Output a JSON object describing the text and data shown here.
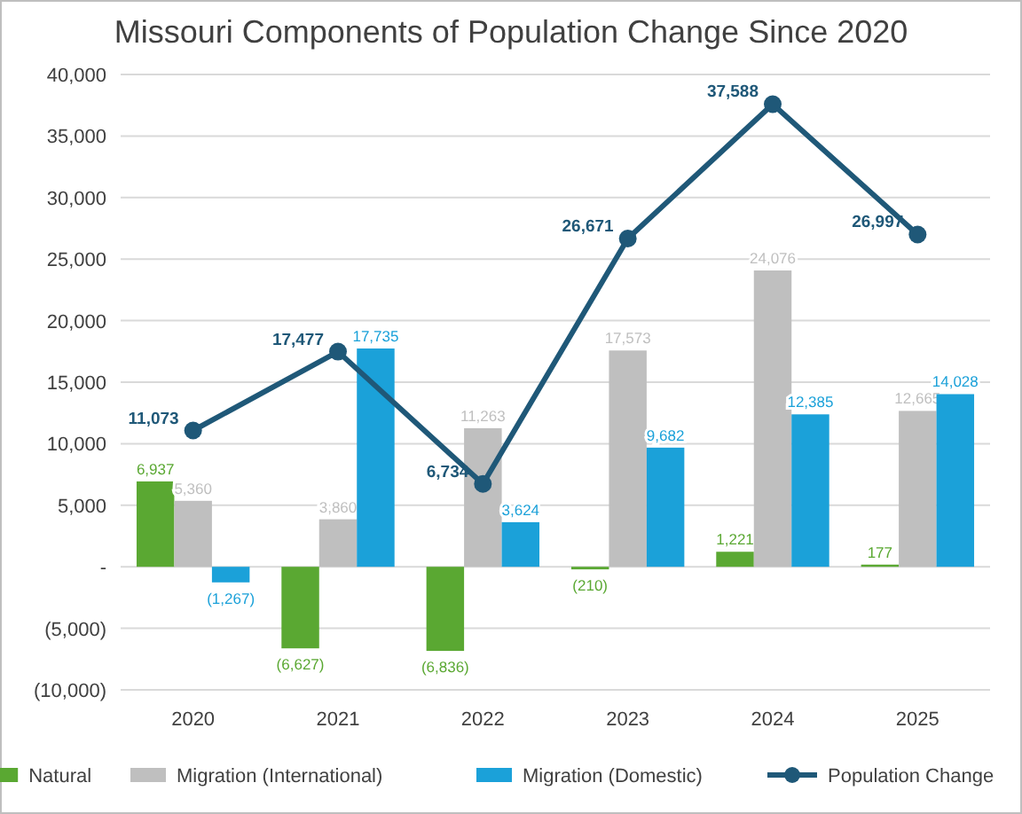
{
  "chart_data": {
    "type": "bar",
    "title": "Missouri Components of Population Change Since 2020",
    "categories": [
      "2020",
      "2021",
      "2022",
      "2023",
      "2024",
      "2025"
    ],
    "series": [
      {
        "name": "Natural",
        "color": "#5aa832",
        "values": [
          6937,
          -6627,
          -6836,
          -210,
          1221,
          177
        ],
        "value_labels": [
          "6,937",
          "(6,627)",
          "(6,836)",
          "(210)",
          "1,221",
          "177"
        ]
      },
      {
        "name": "Migration (International)",
        "color": "#bfbfbf",
        "values": [
          5360,
          3860,
          11263,
          17573,
          24076,
          12665
        ],
        "value_labels": [
          "5,360",
          "3,860",
          "11,263",
          "17,573",
          "24,076",
          "12,665"
        ]
      },
      {
        "name": "Migration (Domestic)",
        "color": "#1ba1d9",
        "values": [
          -1267,
          17735,
          3624,
          9682,
          12385,
          14028
        ],
        "value_labels": [
          "(1,267)",
          "17,735",
          "3,624",
          "9,682",
          "12,385",
          "14,028"
        ]
      },
      {
        "name": "Population Change",
        "type": "line",
        "color": "#1f5878",
        "marker": "circle",
        "values": [
          11073,
          17477,
          6734,
          26671,
          37588,
          26997
        ],
        "value_labels": [
          "11,073",
          "17,477",
          "6,734",
          "26,671",
          "37,588",
          "26,997"
        ]
      }
    ],
    "ylim": [
      -10000,
      40000
    ],
    "yticks": [
      {
        "value": -10000,
        "label": "(10,000)"
      },
      {
        "value": -5000,
        "label": "(5,000)"
      },
      {
        "value": 0,
        "label": "-"
      },
      {
        "value": 5000,
        "label": "5,000"
      },
      {
        "value": 10000,
        "label": "10,000"
      },
      {
        "value": 15000,
        "label": "15,000"
      },
      {
        "value": 20000,
        "label": "20,000"
      },
      {
        "value": 25000,
        "label": "25,000"
      },
      {
        "value": 30000,
        "label": "30,000"
      },
      {
        "value": 35000,
        "label": "35,000"
      },
      {
        "value": 40000,
        "label": "40,000"
      }
    ],
    "grid": "y",
    "legend": "bottom"
  }
}
